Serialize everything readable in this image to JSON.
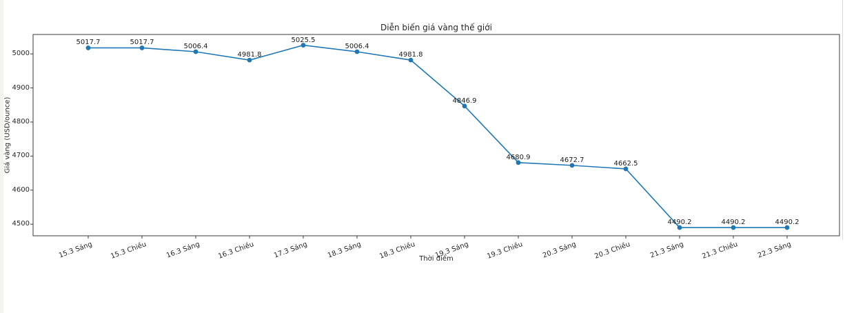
{
  "page": {
    "background": "#ffffff"
  },
  "chart_data": {
    "type": "line",
    "title": "Diễn biến giá vàng thế giới",
    "xlabel": "Thời điểm",
    "ylabel": "Giá vàng (USD/ounce)",
    "categories": [
      "15.3 Sáng",
      "15.3 Chiều",
      "16.3 Sáng",
      "16.3 Chiều",
      "17.3 Sáng",
      "18.3 Sáng",
      "18.3 Chiều",
      "19.3 Sáng",
      "19.3 Chiều",
      "20.3 Sáng",
      "20.3 Chiều",
      "21.3 Sáng",
      "21.3 Chiều",
      "22.3 Sáng"
    ],
    "values": [
      5017.7,
      5017.7,
      5006.4,
      4981.8,
      5025.5,
      5006.4,
      4981.8,
      4846.9,
      4680.9,
      4672.7,
      4662.5,
      4490.2,
      4490.2,
      4490.2
    ],
    "point_labels": [
      "5017.7",
      "5017.7",
      "5006.4",
      "4981.8",
      "5025.5",
      "5006.4",
      "4981.8",
      "4846.9",
      "4680.9",
      "4672.7",
      "4662.5",
      "4490.2",
      "4490.2",
      "4490.2"
    ],
    "yticks": [
      4500,
      4600,
      4700,
      4800,
      4900,
      5000
    ],
    "ylim": [
      4466,
      5057
    ],
    "xtick_rotation_deg": 20,
    "grid": false,
    "legend": false,
    "line_color": "#1f77b4",
    "marker_color": "#1f77b4",
    "axis_color": "#3a3a3a",
    "text_color": "#262626"
  }
}
